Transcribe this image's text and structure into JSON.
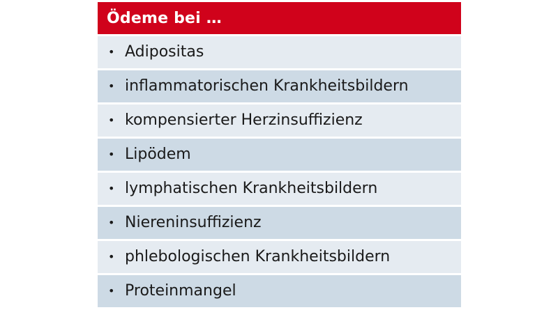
{
  "table": {
    "header": "Ödeme bei …",
    "bullet": "•",
    "rows": [
      "Adipositas",
      "inflammatorischen Krankheitsbildern",
      "kompensierter Herzinsuffizienz",
      "Lipödem",
      "lymphatischen Krankheitsbildern",
      "Niereninsuffizienz",
      "phlebologischen Krankheitsbildern",
      "Proteinmangel"
    ]
  },
  "colors": {
    "header_bg": "#d0021b",
    "row_light": "#e5ebf1",
    "row_dark": "#cddae5"
  }
}
